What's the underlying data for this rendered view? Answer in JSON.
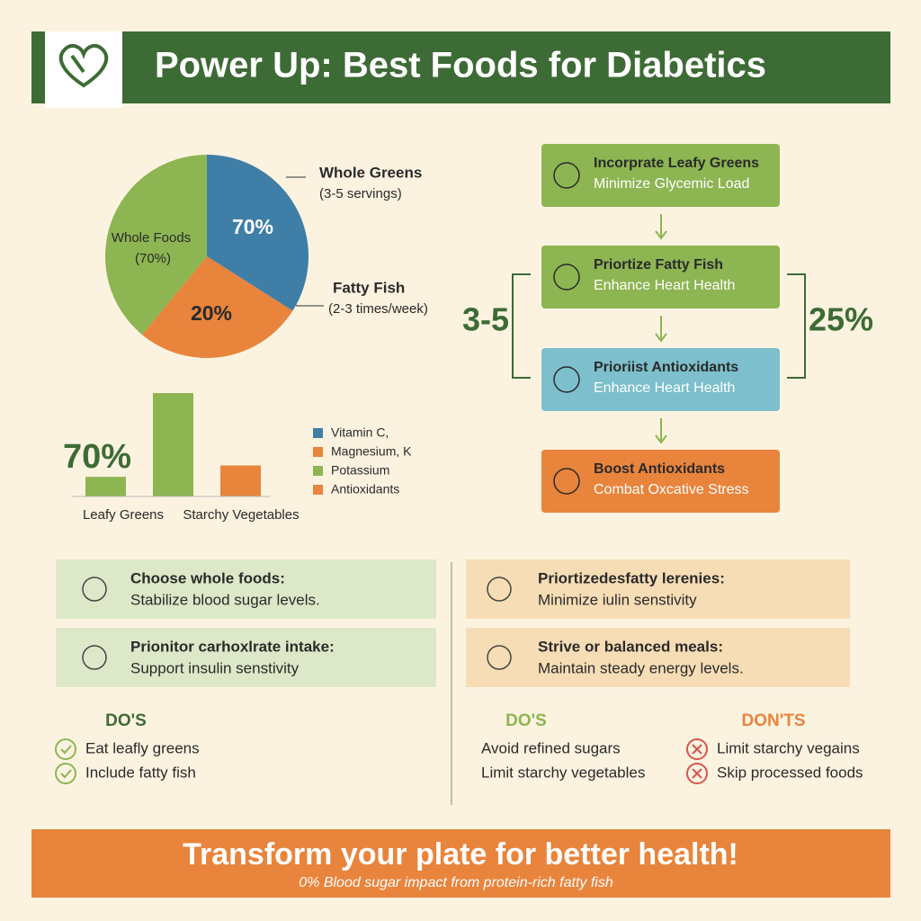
{
  "header": {
    "title": "Power Up: Best Foods for Diabetics"
  },
  "chart_data": [
    {
      "type": "pie",
      "values": [
        34,
        27,
        39
      ],
      "colors": [
        "#3f7ea6",
        "#e8843c",
        "#8db552"
      ],
      "annotations": [
        "Whole Greens",
        "(3-5 servings)",
        "Fatty Fish",
        "(2-3 times/week)",
        "Whole Foods",
        "(70%)",
        "70%",
        "20%"
      ]
    },
    {
      "type": "bar",
      "categories": [
        "Leafy Greens",
        null,
        "Starchy Vegetables"
      ],
      "values": [
        19,
        100,
        30
      ],
      "colors": [
        "#8db552",
        "#8db552",
        "#e8843c"
      ],
      "annotation": "70%",
      "legend": [
        {
          "name": "Vitamin C,",
          "color": "#3f7ea6"
        },
        {
          "name": "Magnesium, K",
          "color": "#e8843c"
        },
        {
          "name": "Potassium",
          "color": "#8db552"
        },
        {
          "name": "Antioxidants",
          "color": "#e8843c"
        }
      ]
    }
  ],
  "flow": {
    "nodes": [
      {
        "title": "Incorprate Leafy Greens",
        "subtitle": "Minimize Glycemic Load",
        "color": "#8db552"
      },
      {
        "title": "Priortize Fatty Fish",
        "subtitle": "Enhance Heart Health",
        "color": "#8db552"
      },
      {
        "title": "Prioriist Antioxidants",
        "subtitle": "Enhance Heart Health",
        "color": "#7dbfcc"
      },
      {
        "title": "Boost Antioxidants",
        "subtitle": "Combat Oxcative Stress",
        "color": "#e8843c"
      }
    ],
    "side_labels": [
      "3-5",
      "25%"
    ]
  },
  "tips": {
    "left": [
      {
        "title": "Choose whole foods:",
        "text": "Stabilize blood sugar levels."
      },
      {
        "title": "Prionitor carhoxlrate intake:",
        "text": "Support insulin senstivity"
      }
    ],
    "right": [
      {
        "title": "Priortizedesfatty lerenies:",
        "text": "Minimize iulin senstivity"
      },
      {
        "title": "Strive or balanced meals:",
        "text": "Maintain steady energy levels."
      }
    ]
  },
  "dos_left": {
    "heading": "DO'S",
    "items": [
      "Eat leafly greens",
      "Include fatty fish"
    ]
  },
  "dos_right": {
    "heading": "DO'S",
    "items": [
      "Avoid refined sugars",
      "Limit starchy vegetables"
    ]
  },
  "donts": {
    "heading": "DON'TS",
    "items": [
      "Limit starchy vegains",
      "Skip processed foods"
    ]
  },
  "footer": {
    "title": "Transform your plate for better health!",
    "subtitle": "0% Blood sugar impact from protein-rich fatty fish"
  }
}
